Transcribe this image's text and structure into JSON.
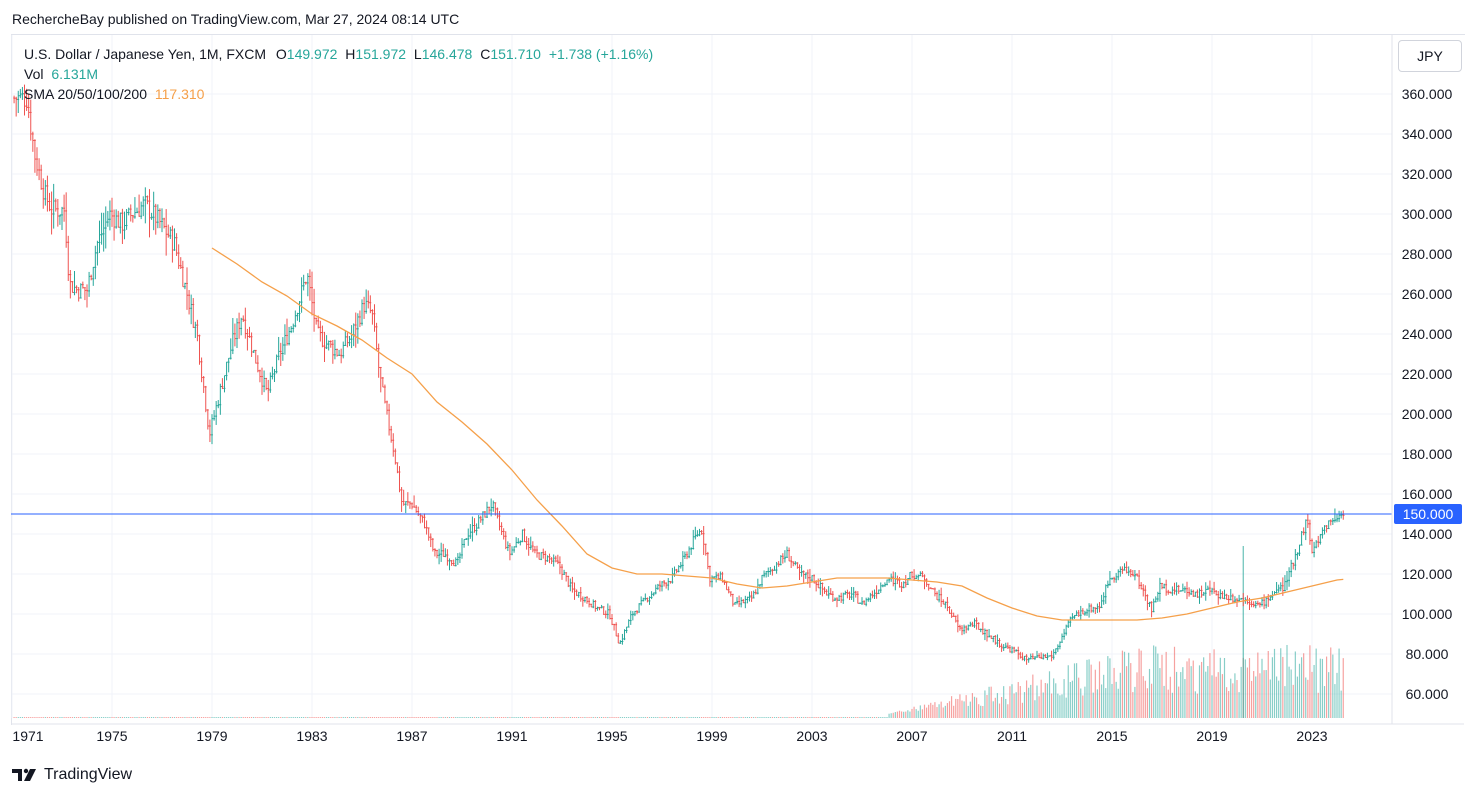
{
  "header": {
    "published": "RechercheBay published on TradingView.com, Mar 27, 2024 08:14 UTC"
  },
  "legend": {
    "symbol": "U.S. Dollar / Japanese Yen, 1M, FXCM",
    "o_label": "O",
    "o_value": "149.972",
    "h_label": "H",
    "h_value": "151.972",
    "l_label": "L",
    "l_value": "146.478",
    "c_label": "C",
    "c_value": "151.710",
    "change": "+1.738 (+1.16%)",
    "vol_label": "Vol",
    "vol_value": "6.131M",
    "sma_label": "SMA 20/50/100/200",
    "sma_value": "117.310"
  },
  "currency_button": "JPY",
  "footer": {
    "brand": "TradingView"
  },
  "colors": {
    "up": "#26a69a",
    "down": "#ef5350",
    "sma": "#f5a04a",
    "hline": "#2962ff",
    "grid": "#f0f3fa"
  },
  "chart_data": {
    "type": "candlestick",
    "title": "U.S. Dollar / Japanese Yen, 1M, FXCM",
    "ylim": [
      48,
      362
    ],
    "y_ticks": [
      "360.000",
      "340.000",
      "320.000",
      "300.000",
      "280.000",
      "260.000",
      "240.000",
      "220.000",
      "200.000",
      "180.000",
      "160.000",
      "140.000",
      "120.000",
      "100.000",
      "80.000",
      "60.000"
    ],
    "x_ticks": [
      "1971",
      "1975",
      "1979",
      "1983",
      "1987",
      "1991",
      "1995",
      "1999",
      "2003",
      "2007",
      "2011",
      "2015",
      "2019",
      "2023"
    ],
    "price_path": [
      [
        1971.0,
        358
      ],
      [
        1971.6,
        358
      ],
      [
        1971.9,
        330
      ],
      [
        1972.3,
        310
      ],
      [
        1972.6,
        302
      ],
      [
        1973.1,
        302
      ],
      [
        1973.3,
        265
      ],
      [
        1973.6,
        262
      ],
      [
        1974.0,
        262
      ],
      [
        1974.4,
        285
      ],
      [
        1974.9,
        300
      ],
      [
        1975.4,
        295
      ],
      [
        1975.8,
        300
      ],
      [
        1976.3,
        305
      ],
      [
        1976.9,
        296
      ],
      [
        1977.5,
        285
      ],
      [
        1977.9,
        265
      ],
      [
        1978.4,
        240
      ],
      [
        1978.9,
        190
      ],
      [
        1979.3,
        210
      ],
      [
        1979.8,
        235
      ],
      [
        1980.2,
        250
      ],
      [
        1980.8,
        225
      ],
      [
        1981.2,
        210
      ],
      [
        1981.7,
        230
      ],
      [
        1982.2,
        245
      ],
      [
        1982.8,
        270
      ],
      [
        1983.2,
        240
      ],
      [
        1983.6,
        235
      ],
      [
        1984.1,
        230
      ],
      [
        1984.6,
        240
      ],
      [
        1985.1,
        255
      ],
      [
        1985.4,
        250
      ],
      [
        1985.7,
        220
      ],
      [
        1985.9,
        205
      ],
      [
        1986.3,
        180
      ],
      [
        1986.6,
        155
      ],
      [
        1987.0,
        155
      ],
      [
        1987.5,
        145
      ],
      [
        1987.9,
        130
      ],
      [
        1988.3,
        130
      ],
      [
        1988.8,
        125
      ],
      [
        1989.2,
        140
      ],
      [
        1989.6,
        145
      ],
      [
        1990.2,
        155
      ],
      [
        1990.6,
        140
      ],
      [
        1990.9,
        130
      ],
      [
        1991.4,
        140
      ],
      [
        1991.9,
        130
      ],
      [
        1992.4,
        128
      ],
      [
        1992.9,
        124
      ],
      [
        1993.4,
        112
      ],
      [
        1993.9,
        108
      ],
      [
        1994.4,
        103
      ],
      [
        1994.9,
        100
      ],
      [
        1995.3,
        85
      ],
      [
        1995.8,
        100
      ],
      [
        1996.4,
        108
      ],
      [
        1996.9,
        114
      ],
      [
        1997.4,
        118
      ],
      [
        1997.9,
        128
      ],
      [
        1998.4,
        140
      ],
      [
        1998.6,
        142
      ],
      [
        1998.9,
        118
      ],
      [
        1999.4,
        118
      ],
      [
        1999.9,
        104
      ],
      [
        2000.6,
        108
      ],
      [
        2001.0,
        118
      ],
      [
        2001.5,
        124
      ],
      [
        2002.0,
        130
      ],
      [
        2002.5,
        120
      ],
      [
        2003.0,
        118
      ],
      [
        2003.6,
        110
      ],
      [
        2004.0,
        108
      ],
      [
        2004.6,
        110
      ],
      [
        2005.0,
        105
      ],
      [
        2005.6,
        112
      ],
      [
        2006.0,
        118
      ],
      [
        2006.6,
        115
      ],
      [
        2007.0,
        120
      ],
      [
        2007.5,
        118
      ],
      [
        2007.9,
        110
      ],
      [
        2008.4,
        104
      ],
      [
        2008.9,
        92
      ],
      [
        2009.5,
        95
      ],
      [
        2010.0,
        90
      ],
      [
        2010.6,
        84
      ],
      [
        2011.0,
        82
      ],
      [
        2011.6,
        77
      ],
      [
        2012.0,
        78
      ],
      [
        2012.6,
        79
      ],
      [
        2012.9,
        86
      ],
      [
        2013.4,
        98
      ],
      [
        2013.9,
        102
      ],
      [
        2014.5,
        104
      ],
      [
        2014.9,
        118
      ],
      [
        2015.4,
        122
      ],
      [
        2015.9,
        120
      ],
      [
        2016.3,
        110
      ],
      [
        2016.6,
        102
      ],
      [
        2016.9,
        114
      ],
      [
        2017.4,
        112
      ],
      [
        2017.9,
        112
      ],
      [
        2018.4,
        110
      ],
      [
        2018.9,
        112
      ],
      [
        2019.4,
        109
      ],
      [
        2019.9,
        108
      ],
      [
        2020.4,
        107
      ],
      [
        2020.9,
        104
      ],
      [
        2021.4,
        110
      ],
      [
        2021.9,
        114
      ],
      [
        2022.3,
        128
      ],
      [
        2022.8,
        148
      ],
      [
        2023.0,
        130
      ],
      [
        2023.5,
        144
      ],
      [
        2023.9,
        148
      ],
      [
        2024.2,
        150
      ],
      [
        2024.25,
        151.7
      ]
    ],
    "sma_path": [
      [
        1979.0,
        283
      ],
      [
        1980.0,
        275
      ],
      [
        1981.0,
        266
      ],
      [
        1982.0,
        259
      ],
      [
        1983.0,
        250
      ],
      [
        1984.0,
        244
      ],
      [
        1985.0,
        237
      ],
      [
        1986.0,
        228
      ],
      [
        1987.0,
        220
      ],
      [
        1988.0,
        206
      ],
      [
        1989.0,
        196
      ],
      [
        1990.0,
        185
      ],
      [
        1991.0,
        172
      ],
      [
        1992.0,
        157
      ],
      [
        1993.0,
        144
      ],
      [
        1994.0,
        130
      ],
      [
        1995.0,
        123
      ],
      [
        1996.0,
        120
      ],
      [
        1997.0,
        120
      ],
      [
        1998.0,
        119
      ],
      [
        1999.0,
        118
      ],
      [
        2000.0,
        115
      ],
      [
        2001.0,
        113
      ],
      [
        2002.0,
        114
      ],
      [
        2003.0,
        116
      ],
      [
        2004.0,
        118
      ],
      [
        2005.0,
        118
      ],
      [
        2006.0,
        118
      ],
      [
        2007.0,
        117
      ],
      [
        2008.0,
        116
      ],
      [
        2009.0,
        114
      ],
      [
        2010.0,
        108
      ],
      [
        2011.0,
        103
      ],
      [
        2012.0,
        99
      ],
      [
        2013.0,
        97
      ],
      [
        2014.0,
        97
      ],
      [
        2015.0,
        97
      ],
      [
        2016.0,
        97
      ],
      [
        2017.0,
        98
      ],
      [
        2018.0,
        100
      ],
      [
        2019.0,
        103
      ],
      [
        2020.0,
        106
      ],
      [
        2021.0,
        108
      ],
      [
        2022.0,
        111
      ],
      [
        2023.0,
        114
      ],
      [
        2024.0,
        117
      ],
      [
        2024.25,
        117.31
      ]
    ],
    "current_price_line": {
      "value": 150.0,
      "label": "150.000"
    },
    "volume_start_year": 2006,
    "volume_spike": {
      "year": 2020.25,
      "price_low": 108,
      "price_high": 134
    },
    "grid": true
  }
}
